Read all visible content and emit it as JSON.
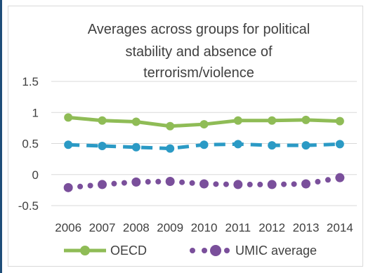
{
  "chart_data": {
    "type": "line",
    "title_lines": [
      "Averages across groups for political",
      "stability and absence of",
      "terrorism/violence"
    ],
    "title": "Averages across groups for political stability and absence of terrorism/violence",
    "categories": [
      "2006",
      "2007",
      "2008",
      "2009",
      "2010",
      "2011",
      "2012",
      "2013",
      "2014"
    ],
    "series": [
      {
        "name": "OECD",
        "values": [
          0.92,
          0.87,
          0.85,
          0.78,
          0.81,
          0.87,
          0.87,
          0.88,
          0.86
        ],
        "color": "#8fbc56",
        "style": "solid"
      },
      {
        "name": "UMIC average",
        "values": [
          -0.21,
          -0.16,
          -0.12,
          -0.11,
          -0.15,
          -0.16,
          -0.16,
          -0.15,
          -0.05
        ],
        "color": "#7a4f9b",
        "style": "dotted"
      },
      {
        "name": "",
        "values": [
          0.48,
          0.46,
          0.44,
          0.42,
          0.48,
          0.49,
          0.47,
          0.47,
          0.49
        ],
        "color": "#2b9ac5",
        "style": "dashed"
      }
    ],
    "y_ticks": [
      "1.5",
      "1",
      "0.5",
      "0",
      "-0.5"
    ],
    "y_tick_values": [
      1.5,
      1,
      0.5,
      0,
      -0.5
    ],
    "ylim": [
      -0.5,
      1.5
    ],
    "grid": true,
    "legend_position": "bottom"
  }
}
